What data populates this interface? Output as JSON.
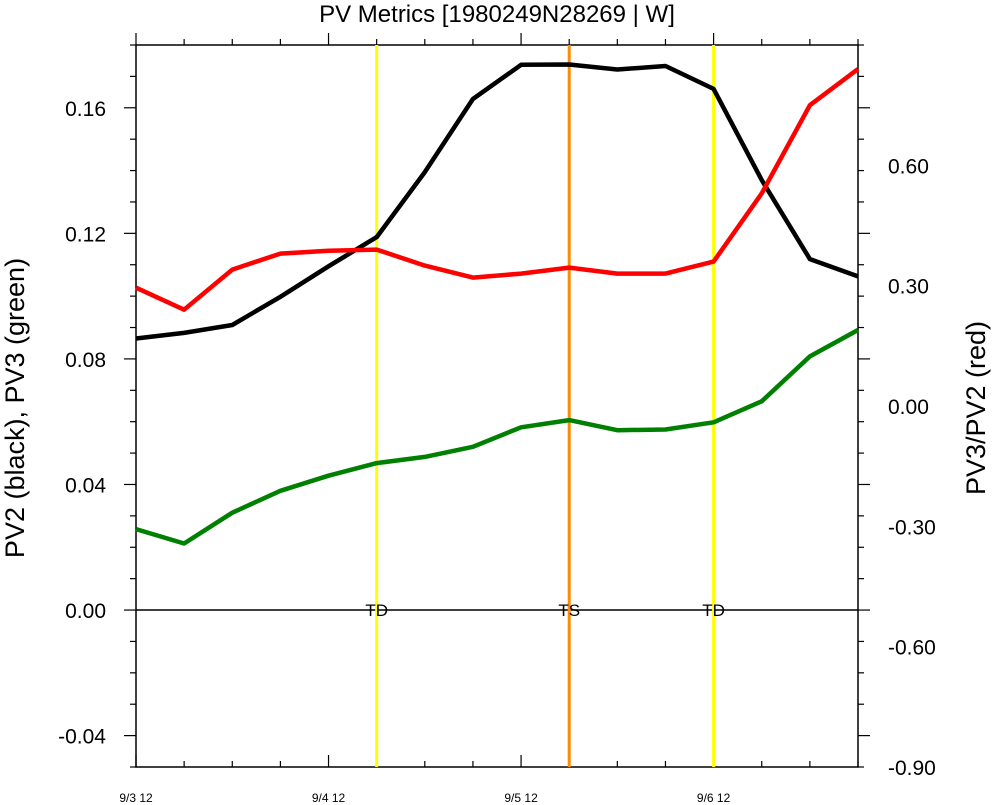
{
  "chart_data": {
    "type": "line",
    "title": "PV Metrics [1980249N28269 | W]",
    "ylabel_left": "PV2 (black), PV3 (green)",
    "ylabel_right": "PV3/PV2 (red)",
    "x_tick_labels": [
      "9/3 12",
      "9/4 12",
      "9/5 12",
      "9/6 12"
    ],
    "x_step_hours": 6,
    "ylim_left": [
      -0.05,
      0.18
    ],
    "ylim_right": [
      -0.9,
      0.9
    ],
    "yticks_left": [
      "-0.04",
      "0.00",
      "0.04",
      "0.08",
      "0.12",
      "0.16"
    ],
    "yticks_right": [
      "-0.90",
      "-0.60",
      "-0.30",
      "0.00",
      "0.30",
      "0.60"
    ],
    "series": [
      {
        "values": [
          0.0865,
          0.0883,
          0.0908,
          0.0998,
          0.1095,
          0.1188,
          0.1395,
          0.1628,
          0.1737,
          0.1738,
          0.1722,
          0.1733,
          0.166,
          0.137,
          0.1118,
          0.1063
        ],
        "color": "#000000",
        "axis": "left"
      },
      {
        "values": [
          0.0258,
          0.0212,
          0.031,
          0.038,
          0.0428,
          0.0468,
          0.0488,
          0.052,
          0.0582,
          0.0605,
          0.0573,
          0.0575,
          0.0598,
          0.0665,
          0.0808,
          0.0892
        ],
        "color": "#008000",
        "axis": "left"
      },
      {
        "values": [
          0.295,
          0.24,
          0.34,
          0.38,
          0.387,
          0.39,
          0.35,
          0.32,
          0.33,
          0.345,
          0.33,
          0.33,
          0.36,
          0.53,
          0.75,
          0.84
        ],
        "color": "#ff0000",
        "axis": "right"
      }
    ],
    "markers": [
      {
        "label": "TD",
        "index": 5,
        "color": "#ffff00"
      },
      {
        "label": "TS",
        "index": 9,
        "color": "#ff8c00"
      },
      {
        "label": "TD",
        "index": 12,
        "color": "#ffff00"
      }
    ]
  }
}
